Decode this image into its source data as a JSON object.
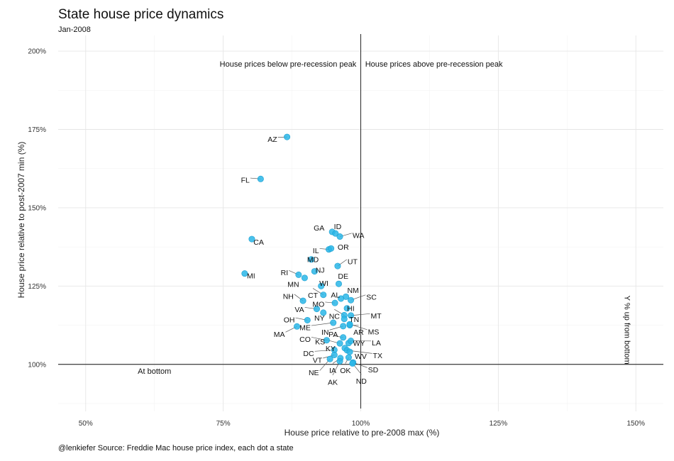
{
  "header": {
    "title": "State house price dynamics",
    "subtitle": "Jan-2008"
  },
  "footer": {
    "caption": "@lenkiefer Source: Freddie Mac house price index, each dot a state"
  },
  "chart_data": {
    "type": "scatter",
    "xlabel": "House price relative to pre-2008 max (%)",
    "ylabel": "House price relative to post-2007 min (%)",
    "xlim": [
      45,
      155
    ],
    "ylim": [
      85,
      205
    ],
    "xticks": [
      {
        "value": 50,
        "label": "50%"
      },
      {
        "value": 75,
        "label": "75%"
      },
      {
        "value": 100,
        "label": "100%"
      },
      {
        "value": 125,
        "label": "125%"
      },
      {
        "value": 150,
        "label": "150%"
      }
    ],
    "yticks": [
      {
        "value": 100,
        "label": "100%"
      },
      {
        "value": 125,
        "label": "125%"
      },
      {
        "value": 150,
        "label": "150%"
      },
      {
        "value": 175,
        "label": "175%"
      },
      {
        "value": 200,
        "label": "200%"
      }
    ],
    "reference_lines": {
      "x": 100,
      "y": 100
    },
    "grid": true,
    "point_color": "#29b6e8",
    "annotations": [
      {
        "text": "House prices below pre-recession peak",
        "x": 99.2,
        "y": 195,
        "anchor": "end"
      },
      {
        "text": "House prices above pre-recession peak",
        "x": 100.8,
        "y": 195,
        "anchor": "start"
      },
      {
        "text": "At bottom",
        "x": 62.5,
        "y": 97,
        "anchor": "middle"
      },
      {
        "text": "Y % up from bottom",
        "x": 148,
        "y": 111,
        "anchor": "middle",
        "rotate": 90
      }
    ],
    "points": [
      {
        "state": "AZ",
        "x": 86.6,
        "y": 172.6,
        "lx": 84.8,
        "ly": 171.8,
        "anchor": "end"
      },
      {
        "state": "FL",
        "x": 81.8,
        "y": 159.2,
        "lx": 79.8,
        "ly": 158.8,
        "anchor": "end"
      },
      {
        "state": "GA",
        "x": 94.8,
        "y": 142.3,
        "lx": 93.4,
        "ly": 143.5,
        "anchor": "end"
      },
      {
        "state": "ID",
        "x": 95.4,
        "y": 141.8,
        "lx": 95.8,
        "ly": 144.0,
        "anchor": "middle"
      },
      {
        "state": "WA",
        "x": 96.2,
        "y": 140.8,
        "lx": 98.5,
        "ly": 141.2,
        "anchor": "start"
      },
      {
        "state": "CA",
        "x": 80.2,
        "y": 140.0,
        "lx": 80.5,
        "ly": 139.0,
        "anchor": "start"
      },
      {
        "state": "IL",
        "x": 94.2,
        "y": 136.7,
        "lx": 92.4,
        "ly": 136.3,
        "anchor": "end"
      },
      {
        "state": "OR",
        "x": 94.6,
        "y": 137.0,
        "lx": 95.8,
        "ly": 137.4,
        "anchor": "start"
      },
      {
        "state": "MD",
        "x": 91.0,
        "y": 133.5,
        "lx": 91.3,
        "ly": 133.5,
        "anchor": "middle"
      },
      {
        "state": "UT",
        "x": 95.8,
        "y": 131.4,
        "lx": 97.6,
        "ly": 132.8,
        "anchor": "start"
      },
      {
        "state": "NJ",
        "x": 91.6,
        "y": 129.7,
        "lx": 92.6,
        "ly": 130.1,
        "anchor": "middle"
      },
      {
        "state": "RI",
        "x": 88.7,
        "y": 128.6,
        "lx": 86.8,
        "ly": 129.3,
        "anchor": "end"
      },
      {
        "state": "MI",
        "x": 78.9,
        "y": 129.0,
        "lx": 79.3,
        "ly": 128.2,
        "anchor": "start"
      },
      {
        "state": "DE",
        "x": 96.0,
        "y": 125.7,
        "lx": 96.8,
        "ly": 128.1,
        "anchor": "middle"
      },
      {
        "state": "MN",
        "x": 89.8,
        "y": 127.6,
        "lx": 88.8,
        "ly": 125.5,
        "anchor": "end"
      },
      {
        "state": "WI",
        "x": 92.8,
        "y": 125.0,
        "lx": 93.3,
        "ly": 125.9,
        "anchor": "middle"
      },
      {
        "state": "NM",
        "x": 97.3,
        "y": 121.6,
        "lx": 98.6,
        "ly": 123.6,
        "anchor": "middle"
      },
      {
        "state": "NH",
        "x": 89.5,
        "y": 120.3,
        "lx": 87.8,
        "ly": 121.7,
        "anchor": "end"
      },
      {
        "state": "CT",
        "x": 93.2,
        "y": 122.2,
        "lx": 91.3,
        "ly": 122.0,
        "anchor": "middle"
      },
      {
        "state": "AL",
        "x": 96.4,
        "y": 121.0,
        "lx": 95.4,
        "ly": 122.1,
        "anchor": "middle"
      },
      {
        "state": "SC",
        "x": 98.2,
        "y": 120.5,
        "lx": 101.0,
        "ly": 121.5,
        "anchor": "start"
      },
      {
        "state": "MO",
        "x": 95.3,
        "y": 119.6,
        "lx": 93.4,
        "ly": 119.2,
        "anchor": "end"
      },
      {
        "state": "HI",
        "x": 97.5,
        "y": 117.9,
        "lx": 97.5,
        "ly": 117.8,
        "anchor": "start"
      },
      {
        "state": "VA",
        "x": 92.0,
        "y": 117.7,
        "lx": 89.7,
        "ly": 117.5,
        "anchor": "end"
      },
      {
        "state": "MT",
        "x": 98.2,
        "y": 115.6,
        "lx": 101.8,
        "ly": 115.5,
        "anchor": "start"
      },
      {
        "state": "NY",
        "x": 93.2,
        "y": 116.5,
        "lx": 92.5,
        "ly": 114.8,
        "anchor": "middle"
      },
      {
        "state": "NC",
        "x": 97.0,
        "y": 115.7,
        "lx": 95.2,
        "ly": 115.3,
        "anchor": "middle"
      },
      {
        "state": "TN",
        "x": 97.0,
        "y": 114.5,
        "lx": 98.8,
        "ly": 114.3,
        "anchor": "middle"
      },
      {
        "state": "OH",
        "x": 90.3,
        "y": 114.1,
        "lx": 88.0,
        "ly": 114.2,
        "anchor": "end"
      },
      {
        "state": "ME",
        "x": 95.0,
        "y": 113.3,
        "lx": 90.9,
        "ly": 111.7,
        "anchor": "end"
      },
      {
        "state": "MA",
        "x": 88.4,
        "y": 112.1,
        "lx": 86.2,
        "ly": 109.6,
        "anchor": "end"
      },
      {
        "state": "IN",
        "x": 96.8,
        "y": 112.2,
        "lx": 94.2,
        "ly": 110.3,
        "anchor": "end"
      },
      {
        "state": "AR",
        "x": 98.0,
        "y": 112.5,
        "lx": 99.6,
        "ly": 110.2,
        "anchor": "middle"
      },
      {
        "state": "MS",
        "x": 98.0,
        "y": 112.8,
        "lx": 101.3,
        "ly": 110.4,
        "anchor": "start"
      },
      {
        "state": "PA",
        "x": 96.8,
        "y": 108.6,
        "lx": 95.0,
        "ly": 109.6,
        "anchor": "middle"
      },
      {
        "state": "CO",
        "x": 93.8,
        "y": 107.7,
        "lx": 90.9,
        "ly": 108.0,
        "anchor": "end"
      },
      {
        "state": "KS",
        "x": 96.2,
        "y": 106.7,
        "lx": 93.5,
        "ly": 107.2,
        "anchor": "end"
      },
      {
        "state": "WY",
        "x": 97.8,
        "y": 106.8,
        "lx": 98.6,
        "ly": 106.7,
        "anchor": "start"
      },
      {
        "state": "LA",
        "x": 98.2,
        "y": 107.5,
        "lx": 102.0,
        "ly": 106.8,
        "anchor": "start"
      },
      {
        "state": "KY",
        "x": 97.1,
        "y": 105.2,
        "lx": 95.4,
        "ly": 105.0,
        "anchor": "end"
      },
      {
        "state": "DC",
        "x": 95.2,
        "y": 104.6,
        "lx": 91.5,
        "ly": 103.5,
        "anchor": "end"
      },
      {
        "state": "TX",
        "x": 97.5,
        "y": 104.5,
        "lx": 102.2,
        "ly": 102.8,
        "anchor": "start"
      },
      {
        "state": "WV",
        "x": 98.0,
        "y": 104.0,
        "lx": 98.9,
        "ly": 102.6,
        "anchor": "start"
      },
      {
        "state": "VT",
        "x": 95.2,
        "y": 103.0,
        "lx": 93.0,
        "ly": 101.3,
        "anchor": "end"
      },
      {
        "state": "SD",
        "x": 98.6,
        "y": 100.6,
        "lx": 101.3,
        "ly": 98.3,
        "anchor": "start"
      },
      {
        "state": "NE",
        "x": 94.4,
        "y": 101.7,
        "lx": 92.4,
        "ly": 97.3,
        "anchor": "end"
      },
      {
        "state": "IA",
        "x": 96.3,
        "y": 102.0,
        "lx": 94.9,
        "ly": 98.0,
        "anchor": "middle"
      },
      {
        "state": "OK",
        "x": 97.8,
        "y": 102.2,
        "lx": 97.2,
        "ly": 98.0,
        "anchor": "middle"
      },
      {
        "state": "AK",
        "x": 96.2,
        "y": 101.0,
        "lx": 94.9,
        "ly": 94.3,
        "anchor": "middle"
      },
      {
        "state": "ND",
        "x": 98.5,
        "y": 100.3,
        "lx": 100.1,
        "ly": 94.6,
        "anchor": "middle"
      }
    ]
  }
}
